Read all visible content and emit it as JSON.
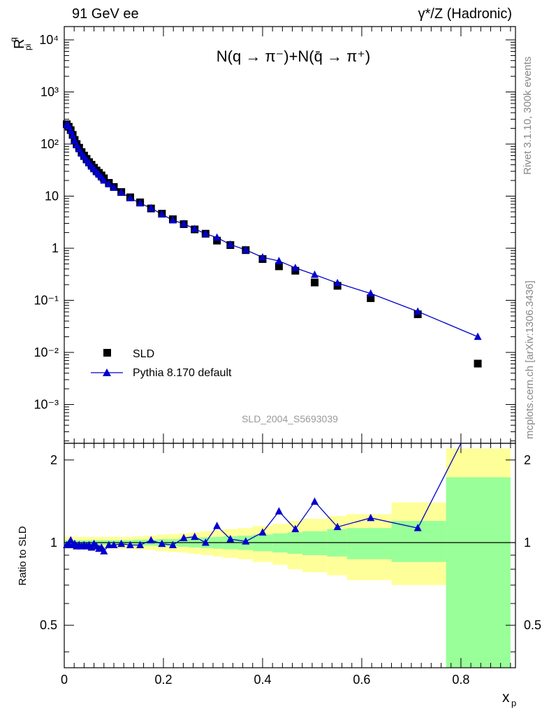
{
  "header": {
    "left": "91 GeV ee",
    "right": "γ*/Z (Hadronic)"
  },
  "side_text": {
    "rivet": "Rivet 3.1.10,  300k events",
    "mcplots": "mcplots.cern.ch [arXiv:1306.3436]"
  },
  "chart_data": [
    {
      "type": "scatter",
      "title": "N(q → π⁻)+N(q̄ → π⁺)",
      "ylabel": "R_pi^q",
      "xlabel": "x_p",
      "yscale": "log",
      "xlim": [
        0,
        0.91
      ],
      "ylim": [
        0.00018,
        18000
      ],
      "yticks": [
        "10^4",
        "10^3",
        "10^2",
        "10",
        "1",
        "10^-1",
        "10^-2",
        "10^-3"
      ],
      "watermark": "SLD_2004_S5693039",
      "legend_position": "lower-left",
      "series": [
        {
          "name": "SLD",
          "style": "black-squares",
          "color": "#000000",
          "x": [
            0.005,
            0.009,
            0.013,
            0.017,
            0.021,
            0.025,
            0.03,
            0.035,
            0.04,
            0.045,
            0.05,
            0.055,
            0.06,
            0.065,
            0.07,
            0.075,
            0.08,
            0.09,
            0.1,
            0.115,
            0.133,
            0.153,
            0.175,
            0.197,
            0.219,
            0.241,
            0.263,
            0.285,
            0.308,
            0.335,
            0.366,
            0.4,
            0.433,
            0.466,
            0.505,
            0.551,
            0.618,
            0.713,
            0.834
          ],
          "y": [
            240,
            215,
            185,
            150,
            120,
            100,
            85,
            70,
            60,
            52,
            45,
            40,
            35,
            31,
            28,
            25,
            22,
            18,
            15,
            12,
            9.5,
            7.6,
            5.8,
            4.6,
            3.6,
            2.9,
            2.3,
            1.9,
            1.4,
            1.15,
            0.92,
            0.62,
            0.45,
            0.37,
            0.22,
            0.19,
            0.11,
            0.054,
            0.0061
          ]
        },
        {
          "name": "Pythia 8.170 default",
          "style": "blue-line-triangles",
          "color": "#0000cc",
          "x": [
            0.005,
            0.009,
            0.013,
            0.017,
            0.021,
            0.025,
            0.03,
            0.035,
            0.04,
            0.045,
            0.05,
            0.055,
            0.06,
            0.065,
            0.07,
            0.075,
            0.08,
            0.09,
            0.1,
            0.115,
            0.133,
            0.153,
            0.175,
            0.197,
            0.219,
            0.241,
            0.263,
            0.285,
            0.308,
            0.335,
            0.366,
            0.4,
            0.433,
            0.466,
            0.505,
            0.551,
            0.618,
            0.713,
            0.834
          ],
          "y": [
            235,
            220,
            180,
            145,
            115,
            95,
            80,
            66,
            57,
            49,
            43,
            37,
            33,
            29,
            26,
            23,
            20,
            17,
            14.5,
            11.8,
            9.2,
            7.3,
            5.9,
            4.5,
            3.45,
            2.95,
            2.35,
            1.9,
            1.6,
            1.18,
            0.93,
            0.67,
            0.57,
            0.42,
            0.31,
            0.215,
            0.135,
            0.061,
            0.02
          ]
        }
      ]
    },
    {
      "type": "line",
      "ylabel": "Ratio to SLD",
      "xlabel": "x_p",
      "yscale": "log",
      "xlim": [
        0,
        0.91
      ],
      "ylim": [
        0.35,
        2.3
      ],
      "yticks": [
        "0.5",
        "1",
        "2"
      ],
      "xticks": [
        "0",
        "0.2",
        "0.4",
        "0.6",
        "0.8"
      ],
      "band_colors": {
        "outer": "#ffff99",
        "inner": "#99ff99"
      },
      "bands": {
        "edges": [
          0.0,
          0.02,
          0.04,
          0.06,
          0.08,
          0.1,
          0.12,
          0.14,
          0.16,
          0.185,
          0.21,
          0.23,
          0.25,
          0.275,
          0.3,
          0.32,
          0.35,
          0.38,
          0.42,
          0.45,
          0.48,
          0.53,
          0.57,
          0.66,
          0.77,
          0.9
        ],
        "outer_hi": [
          1.05,
          1.05,
          1.05,
          1.05,
          1.05,
          1.05,
          1.05,
          1.055,
          1.06,
          1.07,
          1.075,
          1.08,
          1.09,
          1.1,
          1.11,
          1.12,
          1.13,
          1.15,
          1.17,
          1.2,
          1.22,
          1.25,
          1.27,
          1.4,
          2.2
        ],
        "outer_lo": [
          0.95,
          0.95,
          0.95,
          0.95,
          0.95,
          0.95,
          0.95,
          0.945,
          0.94,
          0.93,
          0.925,
          0.92,
          0.91,
          0.9,
          0.89,
          0.88,
          0.87,
          0.85,
          0.83,
          0.8,
          0.78,
          0.76,
          0.73,
          0.7,
          0.7
        ],
        "inner_hi": [
          1.02,
          1.02,
          1.02,
          1.02,
          1.02,
          1.02,
          1.02,
          1.025,
          1.025,
          1.03,
          1.03,
          1.035,
          1.04,
          1.045,
          1.05,
          1.055,
          1.06,
          1.07,
          1.08,
          1.09,
          1.1,
          1.12,
          1.13,
          1.2,
          1.73
        ],
        "inner_lo": [
          0.98,
          0.98,
          0.98,
          0.98,
          0.98,
          0.98,
          0.98,
          0.975,
          0.975,
          0.97,
          0.97,
          0.965,
          0.96,
          0.955,
          0.95,
          0.945,
          0.94,
          0.93,
          0.92,
          0.91,
          0.9,
          0.89,
          0.87,
          0.85,
          0.3
        ]
      },
      "series": [
        {
          "name": "Pythia 8.170 default",
          "color": "#0000cc",
          "x": [
            0.005,
            0.009,
            0.013,
            0.017,
            0.021,
            0.025,
            0.03,
            0.035,
            0.04,
            0.045,
            0.05,
            0.055,
            0.06,
            0.065,
            0.07,
            0.075,
            0.08,
            0.09,
            0.1,
            0.115,
            0.133,
            0.153,
            0.175,
            0.197,
            0.219,
            0.241,
            0.263,
            0.285,
            0.308,
            0.335,
            0.366,
            0.4,
            0.433,
            0.466,
            0.505,
            0.551,
            0.618,
            0.713,
            0.8
          ],
          "y": [
            0.98,
            0.99,
            1.02,
            0.98,
            0.99,
            0.97,
            0.98,
            0.97,
            0.98,
            0.97,
            0.98,
            0.96,
            0.99,
            0.97,
            0.95,
            0.96,
            0.93,
            0.98,
            0.98,
            0.99,
            0.98,
            0.98,
            1.02,
            0.99,
            0.98,
            1.04,
            1.05,
            1.0,
            1.15,
            1.03,
            1.01,
            1.09,
            1.3,
            1.12,
            1.41,
            1.14,
            1.23,
            1.13,
            2.3
          ]
        }
      ]
    }
  ]
}
